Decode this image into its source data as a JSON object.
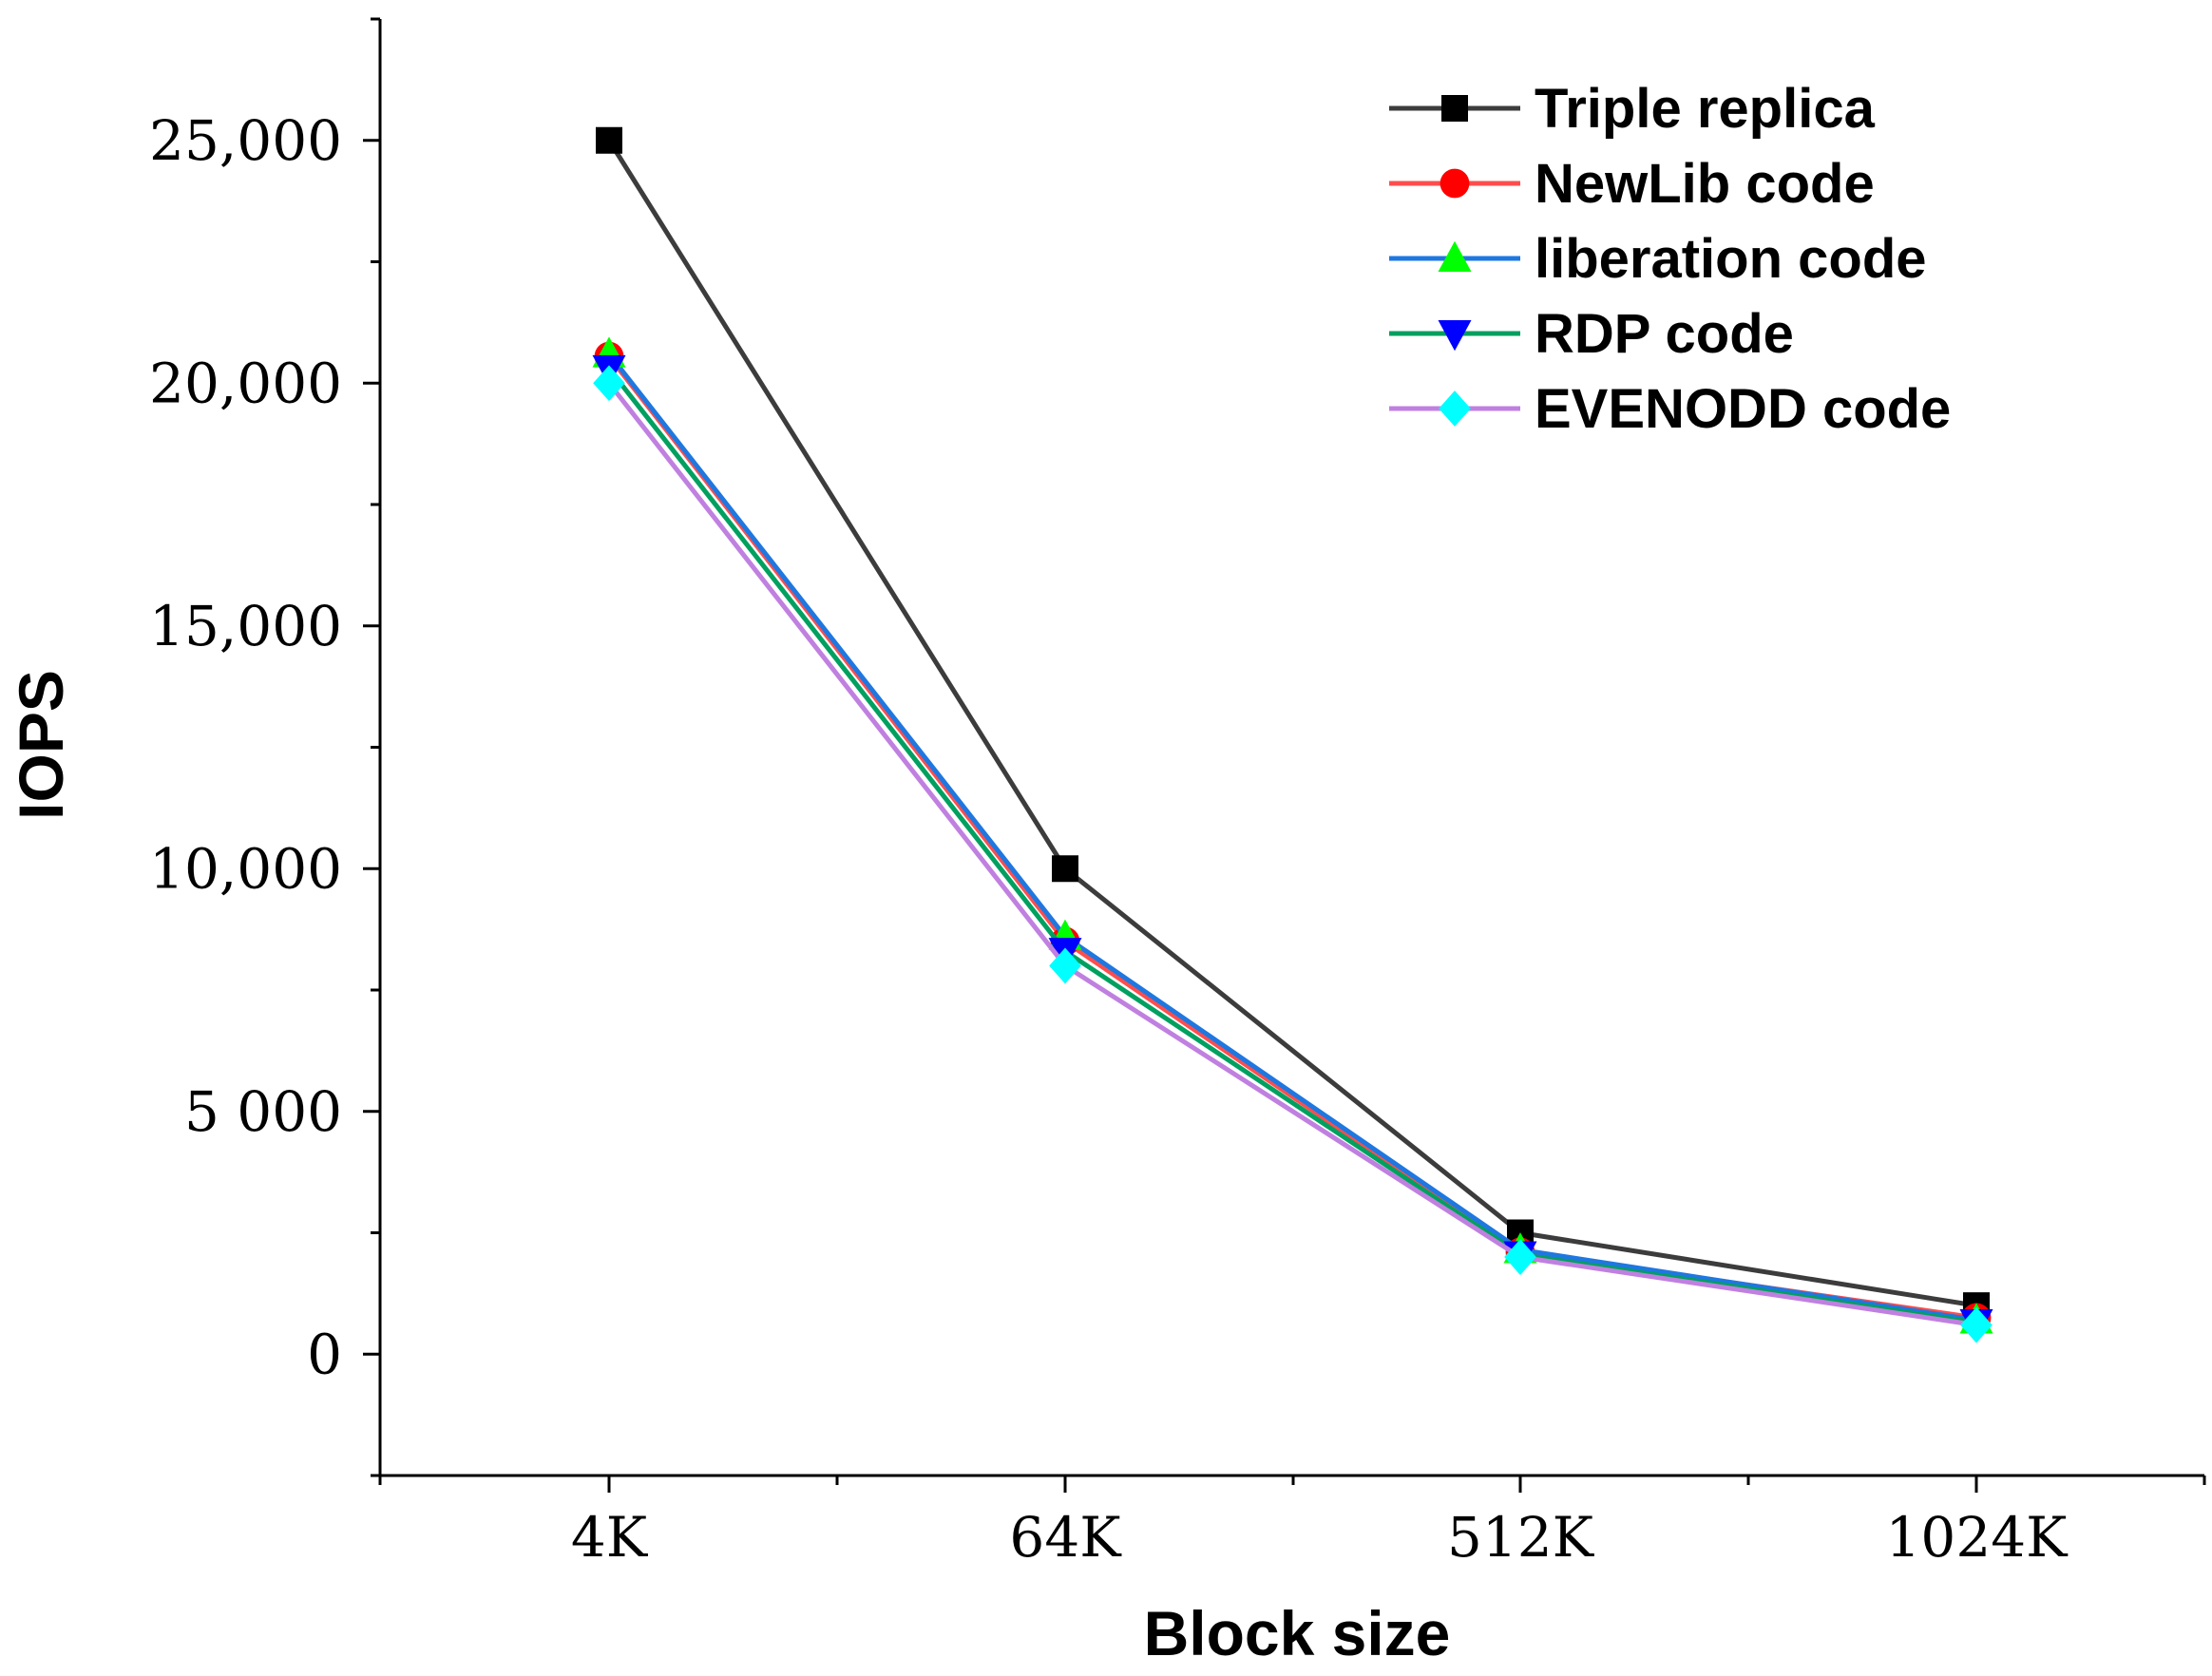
{
  "chart_data": {
    "type": "line",
    "title": "",
    "xlabel": "Block size",
    "ylabel": "IOPS",
    "categories": [
      "4K",
      "64K",
      "512K",
      "1024K"
    ],
    "ylim": [
      -2500,
      27500
    ],
    "yticks": [
      {
        "value": 0,
        "label": "0"
      },
      {
        "value": 5000,
        "label": "5 000"
      },
      {
        "value": 10000,
        "label": "10,000"
      },
      {
        "value": 15000,
        "label": "15,000"
      },
      {
        "value": 20000,
        "label": "20,000"
      },
      {
        "value": 25000,
        "label": "25,000"
      }
    ],
    "legend_position": "top-right",
    "series": [
      {
        "name": "Triple replica",
        "line_color": "#3c3c3c",
        "marker": "square",
        "marker_color": "#000000",
        "values": [
          25000,
          10000,
          2500,
          1000
        ]
      },
      {
        "name": "NewLib code",
        "line_color": "#ff4d4d",
        "marker": "circle",
        "marker_color": "#ff0000",
        "values": [
          20550,
          8500,
          2100,
          750
        ]
      },
      {
        "name": "liberation code",
        "line_color": "#1f77e0",
        "marker": "triangle-up",
        "marker_color": "#00ff00",
        "values": [
          20600,
          8600,
          2150,
          700
        ]
      },
      {
        "name": "RDP code",
        "line_color": "#00a060",
        "marker": "triangle-down",
        "marker_color": "#0000ff",
        "values": [
          20300,
          8300,
          2050,
          650
        ]
      },
      {
        "name": "EVENODD code",
        "line_color": "#c080e0",
        "marker": "diamond",
        "marker_color": "#00ffff",
        "values": [
          20000,
          8000,
          2000,
          600
        ]
      }
    ]
  }
}
